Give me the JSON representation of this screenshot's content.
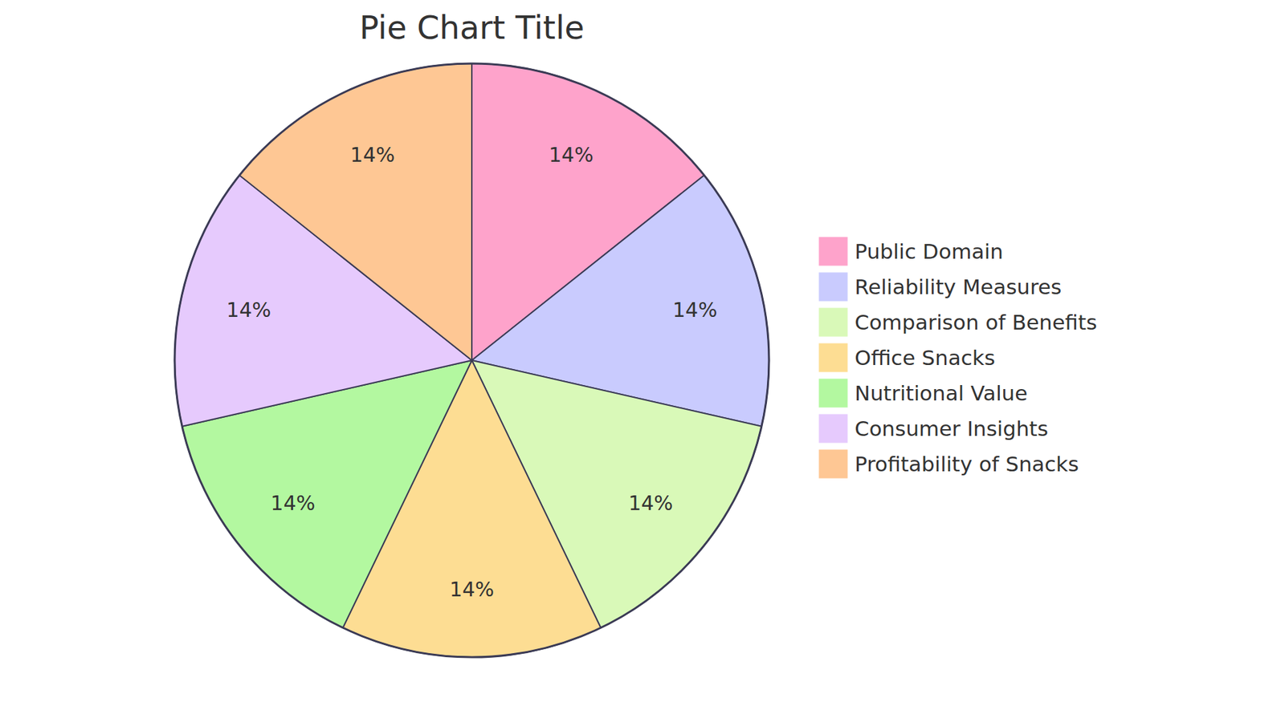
{
  "chart_data": {
    "type": "pie",
    "title": "Pie Chart Title",
    "categories": [
      "Public Domain",
      "Reliability Measures",
      "Comparison of Benefits",
      "Office Snacks",
      "Nutritional Value",
      "Consumer Insights",
      "Profitability of Snacks"
    ],
    "values": [
      14,
      14,
      14,
      14,
      14,
      14,
      14
    ],
    "value_labels": [
      "14%",
      "14%",
      "14%",
      "14%",
      "14%",
      "14%",
      "14%"
    ],
    "colors": [
      "#fea3cb",
      "#c9cbfe",
      "#d9f9b8",
      "#fddd93",
      "#b3f8a0",
      "#e6cafd",
      "#fec794"
    ],
    "data_labels": true,
    "legend": "right"
  }
}
